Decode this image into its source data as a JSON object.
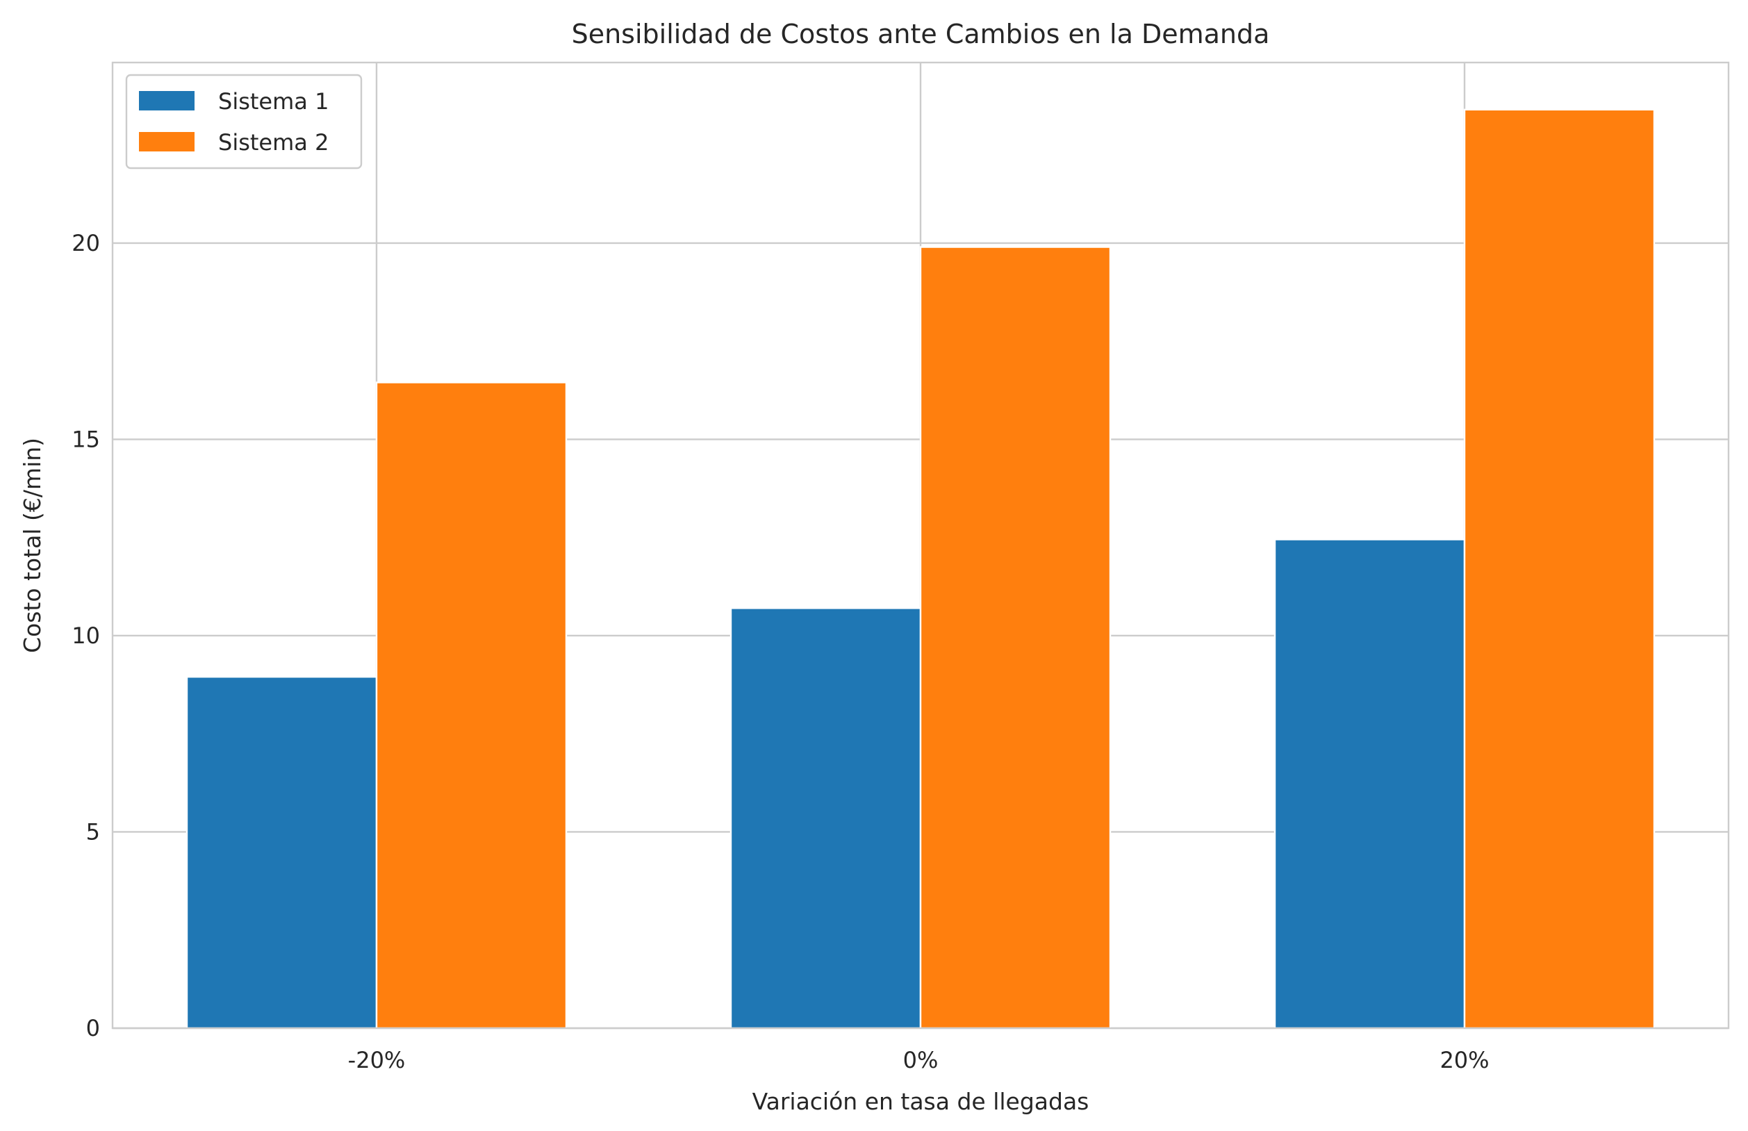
{
  "chart_data": {
    "type": "bar",
    "title": "Sensibilidad de Costos ante Cambios en la Demanda",
    "xlabel": "Variación en tasa de llegadas",
    "ylabel": "Costo total (€/min)",
    "categories": [
      "-20%",
      "0%",
      "20%"
    ],
    "series": [
      {
        "name": "Sistema 1",
        "color": "#1f77b4",
        "values": [
          8.95,
          10.7,
          12.45
        ]
      },
      {
        "name": "Sistema 2",
        "color": "#ff7f0e",
        "values": [
          16.45,
          19.9,
          23.4
        ]
      }
    ],
    "ylim": [
      0,
      24.6
    ],
    "yticks": [
      0,
      5,
      10,
      15,
      20
    ],
    "grid": true,
    "legend": "top-left"
  }
}
